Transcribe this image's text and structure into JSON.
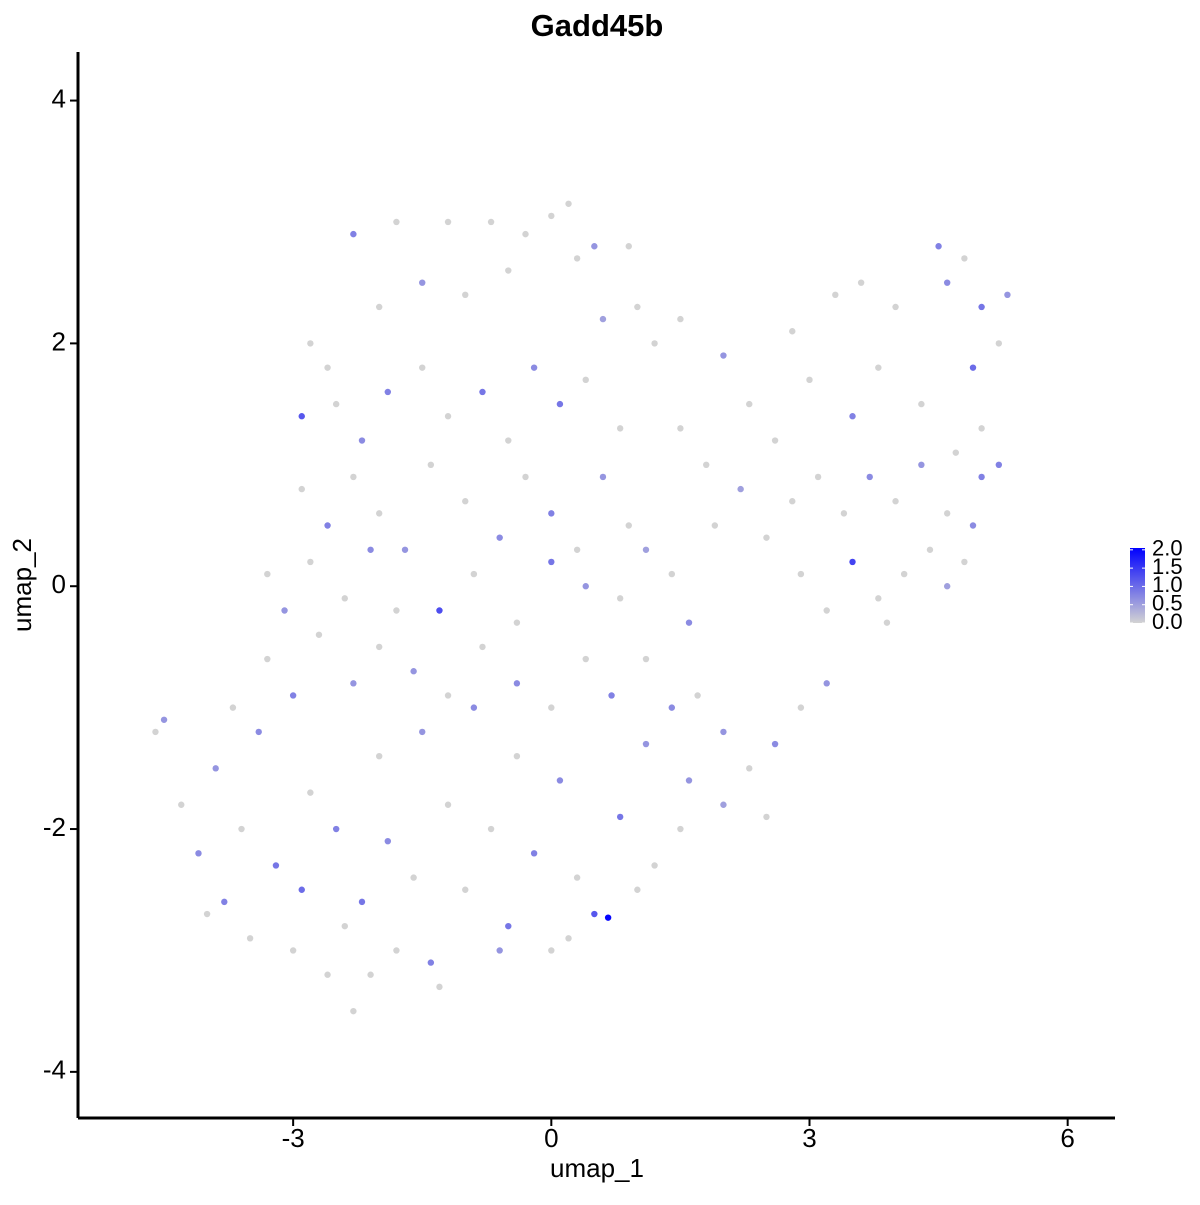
{
  "chart_data": {
    "type": "scatter",
    "title": "Gadd45b",
    "xlabel": "umap_1",
    "ylabel": "umap_2",
    "xlim": [
      -5.5,
      6.55
    ],
    "ylim": [
      -4.38,
      4.4
    ],
    "xticks": [
      -3,
      0,
      3,
      6
    ],
    "yticks": [
      -4,
      -2,
      0,
      2,
      4
    ],
    "colors": [
      "#d3d3d3",
      "#0000ff"
    ],
    "clim": [
      0,
      2.05
    ],
    "cticks": [
      {
        "value": 2,
        "label": "2.0"
      },
      {
        "value": 1.5,
        "label": "1.5"
      },
      {
        "value": 1,
        "label": "1.0"
      },
      {
        "value": 0.5,
        "label": "0.5"
      },
      {
        "value": 0,
        "label": "0.0"
      }
    ],
    "x": [
      -2.9,
      -2.6,
      -2.3,
      -1.8,
      -1.2,
      -0.7,
      -0.3,
      0,
      0.2,
      0.5,
      0.9,
      -2.0,
      -1.5,
      -1.0,
      -0.5,
      0.3,
      0.6,
      1.0,
      -2.8,
      -2.5,
      -2.2,
      -1.9,
      -1.5,
      -1.2,
      -0.8,
      -0.5,
      -0.2,
      0.1,
      0.4,
      0.8,
      -2.9,
      -2.6,
      -2.3,
      -2.0,
      -1.7,
      -1.4,
      -1.0,
      -0.6,
      -0.3,
      0,
      0.3,
      0.6,
      0.9,
      -3.3,
      -3.1,
      -2.8,
      -2.4,
      -2.1,
      -1.8,
      -1.3,
      -0.9,
      -0.4,
      0,
      0.4,
      0.8,
      1.1,
      1.4,
      1.6,
      1.5,
      1.8,
      2.0,
      2.3,
      2.6,
      2.8,
      3.0,
      3.3,
      3.6,
      3.5,
      3.8,
      4.0,
      4.3,
      4.5,
      4.6,
      4.8,
      5.0,
      5.2,
      5.3,
      4.9,
      5.0,
      5.2,
      4.7,
      4.3,
      4.0,
      3.7,
      3.4,
      3.1,
      2.8,
      2.5,
      2.2,
      1.9,
      4.6,
      4.9,
      4.4,
      4.1,
      3.8,
      3.5,
      3.2,
      2.9,
      4.6,
      5.0,
      4.8,
      3.9,
      1.2,
      1.5,
      -4.6,
      -4.5,
      -4.3,
      -4.1,
      -3.9,
      -3.8,
      -3.6,
      -3.5,
      -3.4,
      -3.2,
      -3.0,
      -2.9,
      -2.8,
      -2.6,
      -2.5,
      -2.4,
      -2.3,
      -2.2,
      -2.0,
      -1.9,
      -1.8,
      -1.6,
      -1.5,
      -1.4,
      -1.2,
      -1.0,
      -0.9,
      -0.7,
      -0.5,
      -0.4,
      -0.2,
      0,
      0.1,
      0.3,
      0.5,
      0.66,
      0.8,
      1.0,
      1.1,
      1.2,
      -3.3,
      -3.0,
      -2.7,
      -2.3,
      -2.0,
      -1.6,
      -1.2,
      -0.8,
      -0.4,
      0,
      0.4,
      0.7,
      1.1,
      1.4,
      1.7,
      2.0,
      2.3,
      2.6,
      2.9,
      3.2,
      2.5,
      2.0,
      1.6,
      1.5,
      -3.7,
      -4.0,
      -2.1,
      -1.3,
      -0.6,
      0.2
    ],
    "y": [
      1.4,
      1.8,
      2.9,
      3.0,
      3.0,
      3.0,
      2.9,
      3.05,
      3.15,
      2.8,
      2.8,
      2.3,
      2.5,
      2.4,
      2.6,
      2.7,
      2.2,
      2.3,
      2.0,
      1.5,
      1.2,
      1.6,
      1.8,
      1.4,
      1.6,
      1.2,
      1.8,
      1.5,
      1.7,
      1.3,
      0.8,
      0.5,
      0.9,
      0.6,
      0.3,
      1.0,
      0.7,
      0.4,
      0.9,
      0.6,
      0.3,
      0.9,
      0.5,
      0.1,
      -0.2,
      0.2,
      -0.1,
      0.3,
      -0.2,
      -0.2,
      0.1,
      -0.3,
      0.2,
      0.0,
      -0.1,
      0.3,
      0.1,
      -0.3,
      1.3,
      1.0,
      1.9,
      1.5,
      1.2,
      2.1,
      1.7,
      2.4,
      2.5,
      1.4,
      1.8,
      2.3,
      1.5,
      2.8,
      2.5,
      2.7,
      2.3,
      2.0,
      2.4,
      1.8,
      1.3,
      1.0,
      1.1,
      1.0,
      0.7,
      0.9,
      0.6,
      0.9,
      0.7,
      0.4,
      0.8,
      0.5,
      0.6,
      0.5,
      0.3,
      0.1,
      -0.1,
      0.2,
      -0.2,
      0.1,
      0.0,
      0.9,
      0.2,
      -0.3,
      2.0,
      2.2,
      -1.2,
      -1.1,
      -1.8,
      -2.2,
      -1.5,
      -2.6,
      -2.0,
      -2.9,
      -1.2,
      -2.3,
      -3.0,
      -2.5,
      -1.7,
      -3.2,
      -2.0,
      -2.8,
      -3.5,
      -2.6,
      -1.4,
      -2.1,
      -3.0,
      -2.4,
      -1.2,
      -3.1,
      -1.8,
      -2.5,
      -1.0,
      -2.0,
      -2.8,
      -1.4,
      -2.2,
      -3.0,
      -1.6,
      -2.4,
      -2.7,
      -2.73,
      -1.9,
      -2.5,
      -1.3,
      -2.3,
      -0.6,
      -0.9,
      -0.4,
      -0.8,
      -0.5,
      -0.7,
      -0.9,
      -0.5,
      -0.8,
      -1.0,
      -0.6,
      -0.9,
      -0.6,
      -1.0,
      -0.9,
      -1.2,
      -1.5,
      -1.3,
      -1.0,
      -0.8,
      -1.9,
      -1.8,
      -1.6,
      -2.0,
      -1.0,
      -2.7,
      -3.2,
      -3.3,
      -3.0,
      -2.9
    ],
    "values": [
      1.2,
      0,
      0.8,
      0,
      0,
      0,
      0,
      0,
      0,
      0.6,
      0,
      0,
      0.6,
      0,
      0,
      0,
      0.5,
      0,
      0,
      0,
      0.7,
      0.8,
      0,
      0,
      0.9,
      0,
      0.7,
      0.9,
      0,
      0,
      0,
      0.8,
      0,
      0,
      0.6,
      0,
      0,
      0.7,
      0,
      0.8,
      0,
      0.6,
      0,
      0,
      0.6,
      0,
      0,
      0.7,
      0,
      1.3,
      0,
      0,
      0.9,
      0.6,
      0,
      0.5,
      0,
      0.7,
      0,
      0,
      0.6,
      0,
      0,
      0,
      0,
      0,
      0,
      0.8,
      0,
      0,
      0,
      0.8,
      0.7,
      0,
      0.9,
      0,
      0.6,
      1.0,
      0,
      0.8,
      0,
      0.6,
      0,
      0.7,
      0,
      0,
      0,
      0,
      0.5,
      0,
      0,
      0.7,
      0,
      0,
      0,
      1.4,
      0,
      0,
      0.5,
      0.8,
      0,
      0,
      0,
      0,
      0,
      0.6,
      0,
      0.7,
      0.6,
      0.8,
      0,
      0,
      0.7,
      0.9,
      0,
      1.0,
      0,
      0,
      0.8,
      0,
      0,
      0.9,
      0,
      0.7,
      0,
      0,
      0.6,
      0.8,
      0,
      0,
      0.7,
      0,
      0.9,
      0,
      0.8,
      0,
      0.7,
      0,
      1.2,
      2.0,
      0.9,
      0,
      0.6,
      0,
      0,
      0.8,
      0,
      0.6,
      0,
      0.6,
      0,
      0,
      0.7,
      0,
      0,
      0.8,
      0,
      0.7,
      0,
      0.6,
      0,
      0.7,
      0,
      0.6,
      0,
      0.5,
      0.6,
      0,
      0,
      0,
      0,
      0,
      0.6,
      0
    ]
  }
}
